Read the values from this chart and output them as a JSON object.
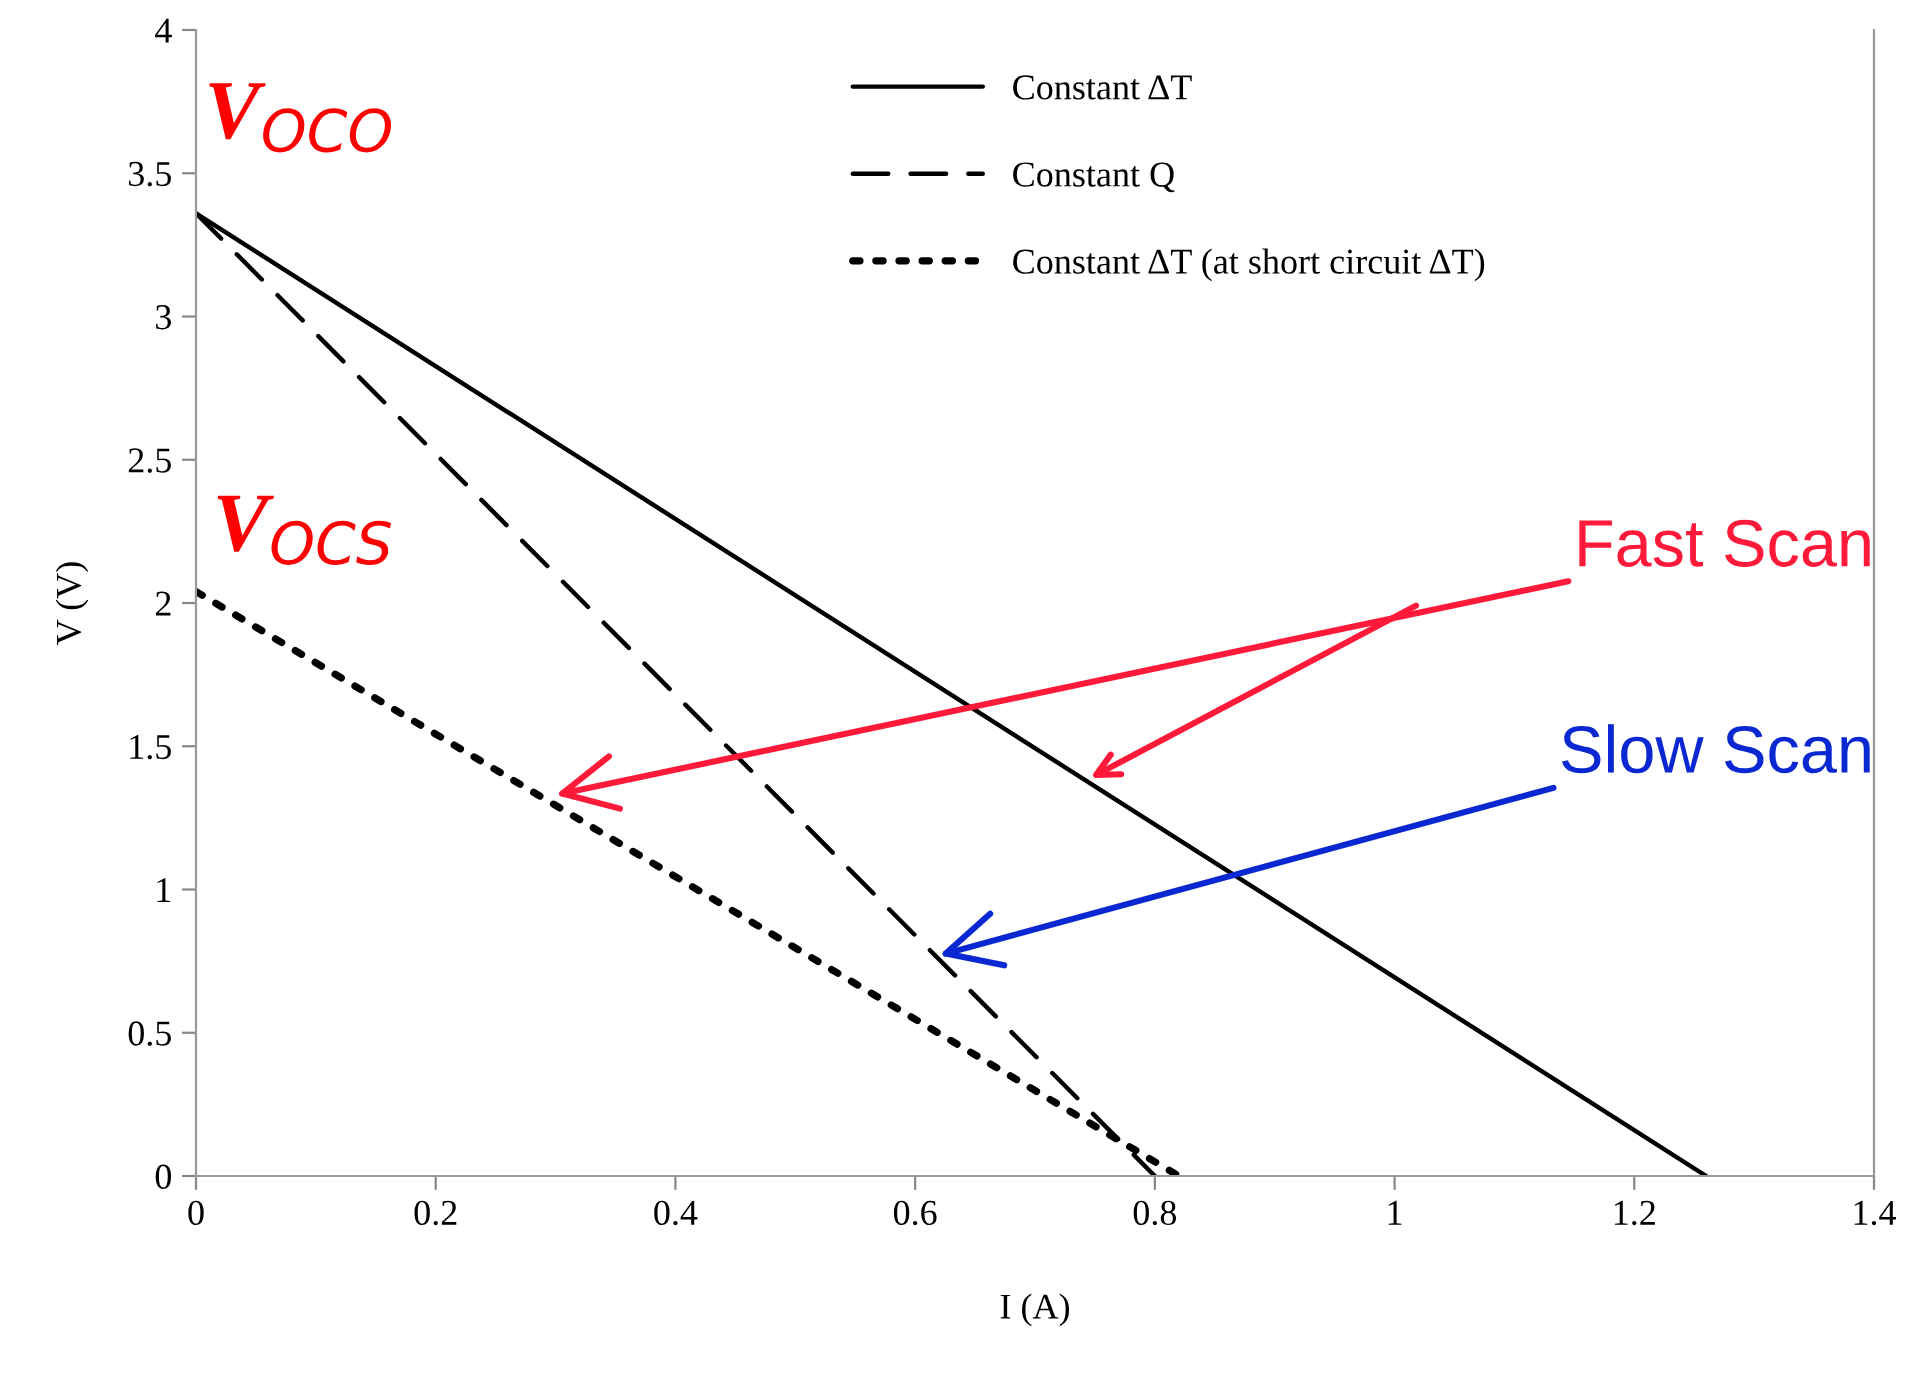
{
  "chart_data": {
    "type": "line",
    "xlabel": "I (A)",
    "ylabel": "V (V)",
    "xlim": [
      0,
      1.4
    ],
    "xticks": [
      0,
      0.2,
      0.4,
      0.6,
      0.8,
      1,
      1.2,
      1.4
    ],
    "ylim": [
      0,
      4
    ],
    "yticks": [
      0,
      0.5,
      1,
      1.5,
      2,
      2.5,
      3,
      3.5,
      4
    ],
    "grid": false,
    "legend": "top",
    "marker": "none",
    "series": [
      {
        "name": "Constant ΔT",
        "color": "#000000",
        "line_style": "solid",
        "x": [
          0,
          1.26
        ],
        "values": [
          3.36,
          0
        ]
      },
      {
        "name": "Constant Q",
        "color": "#000000",
        "line_style": "dashed",
        "x": [
          0,
          0.8
        ],
        "values": [
          3.36,
          0
        ]
      },
      {
        "name": "Constant ΔT (at short circuit ΔT)",
        "color": "#000000",
        "line_style": "dotted",
        "x": [
          0,
          0.82
        ],
        "values": [
          2.04,
          0
        ]
      }
    ],
    "annotations": [
      "V$_{OCO}$",
      "V$_{OCS}$",
      {
        "text": "Fast Scan",
        "x": 0.3,
        "y": 1.33
      },
      {
        "text": "Slow Scan",
        "x": 0.62,
        "y": 0.77
      }
    ]
  }
}
